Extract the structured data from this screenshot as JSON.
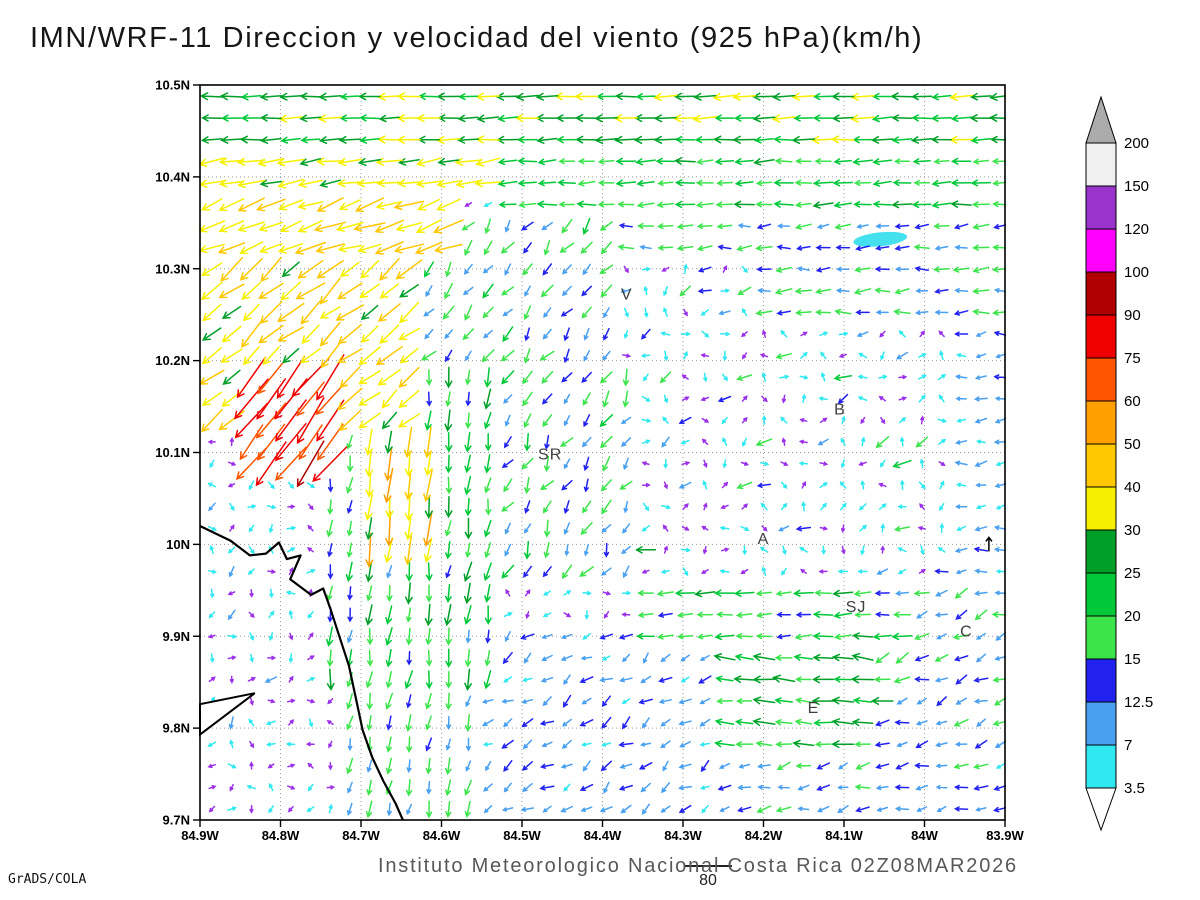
{
  "footer": {
    "credit": "GrADS/COLA",
    "caption": "Instituto Meteorologico Nacional Costa Rica 02Z08MAR2026",
    "reference_vector_label": "80"
  },
  "chart_data": {
    "type": "vector_field",
    "title": "IMN/WRF-11 Direccion y velocidad del viento (925 hPa)(km/h)",
    "units": "km/h",
    "level": "925 hPa",
    "valid_time": "02Z08MAR2026",
    "grid_on": true,
    "calm_color": "#9B30E8",
    "x_axis": {
      "range": [
        84.9,
        83.9
      ],
      "ticks": [
        {
          "v": 84.9,
          "label": "84.9W"
        },
        {
          "v": 84.8,
          "label": "84.8W"
        },
        {
          "v": 84.7,
          "label": "84.7W"
        },
        {
          "v": 84.6,
          "label": "84.6W"
        },
        {
          "v": 84.5,
          "label": "84.5W"
        },
        {
          "v": 84.4,
          "label": "84.4W"
        },
        {
          "v": 84.3,
          "label": "84.3W"
        },
        {
          "v": 84.2,
          "label": "84.2W"
        },
        {
          "v": 84.1,
          "label": "84.1W"
        },
        {
          "v": 84.0,
          "label": "84W"
        },
        {
          "v": 83.9,
          "label": "83.9W"
        }
      ]
    },
    "y_axis": {
      "range": [
        9.7,
        10.5
      ],
      "ticks": [
        {
          "v": 10.5,
          "label": "10.5N"
        },
        {
          "v": 10.4,
          "label": "10.4N"
        },
        {
          "v": 10.3,
          "label": "10.3N"
        },
        {
          "v": 10.2,
          "label": "10.2N"
        },
        {
          "v": 10.1,
          "label": "10.1N"
        },
        {
          "v": 10.0,
          "label": "10N"
        },
        {
          "v": 9.9,
          "label": "9.9N"
        },
        {
          "v": 9.8,
          "label": "9.8N"
        },
        {
          "v": 9.7,
          "label": "9.7N"
        }
      ]
    },
    "colorbar": {
      "units": "km/h",
      "levels": [
        3.5,
        7,
        12.5,
        15,
        20,
        25,
        30,
        40,
        50,
        60,
        75,
        90,
        100,
        120,
        150,
        200
      ],
      "band_colors": [
        "#2FE8F0",
        "#4AA0F0",
        "#2222F0",
        "#3CE44C",
        "#00C838",
        "#00A028",
        "#F6F000",
        "#FFC800",
        "#FFA000",
        "#FF5500",
        "#F00000",
        "#B00000",
        "#FF00FF",
        "#9933CC",
        "#F0F0F0"
      ],
      "above_color": "#ABABAB",
      "below_color": "#FFFFFF"
    },
    "stations": [
      {
        "label": "V",
        "lonW": 84.37,
        "lat": 10.272
      },
      {
        "label": "B",
        "lonW": 84.105,
        "lat": 10.147
      },
      {
        "label": "SR",
        "lonW": 84.465,
        "lat": 10.098
      },
      {
        "label": "A",
        "lonW": 84.2,
        "lat": 10.006
      },
      {
        "label": "SJ",
        "lonW": 84.085,
        "lat": 9.932
      },
      {
        "label": "C",
        "lonW": 83.948,
        "lat": 9.905
      },
      {
        "label": "E",
        "lonW": 84.138,
        "lat": 9.822
      }
    ],
    "coastline": [
      [
        84.9,
        10.02
      ],
      [
        84.862,
        10.004
      ],
      [
        84.838,
        9.988
      ],
      [
        84.818,
        9.99
      ],
      [
        84.802,
        10.002
      ],
      [
        84.792,
        9.984
      ],
      [
        84.775,
        9.988
      ],
      [
        84.788,
        9.962
      ],
      [
        84.762,
        9.945
      ],
      [
        84.747,
        9.952
      ],
      [
        84.738,
        9.93
      ],
      [
        84.727,
        9.9
      ],
      [
        84.715,
        9.868
      ],
      [
        84.707,
        9.835
      ],
      [
        84.698,
        9.798
      ],
      [
        84.686,
        9.768
      ],
      [
        84.672,
        9.742
      ],
      [
        84.657,
        9.718
      ],
      [
        84.648,
        9.7
      ]
    ],
    "spit": [
      [
        84.9,
        9.793
      ],
      [
        84.832,
        9.838
      ],
      [
        84.9,
        9.826
      ]
    ],
    "cyan_patch": {
      "lonW": 84.055,
      "lat": 10.332
    },
    "marks": [
      {
        "lonW": 83.92,
        "lat": 10.0
      }
    ],
    "wind_grid": {
      "lat_start": 9.712,
      "lat_step": 0.0235,
      "rows": 34,
      "lon_start": 83.905,
      "lon_step": 0.0245,
      "cols": 41
    },
    "flow_regions": [
      {
        "name": "red-jet-core",
        "lonW": [
          84.84,
          84.72
        ],
        "lat": [
          10.085,
          10.185
        ],
        "u": -46,
        "v": -62,
        "jd": 8,
        "js": 0.18
      },
      {
        "name": "orange-downflow",
        "lonW": [
          84.69,
          84.615
        ],
        "lat": [
          9.99,
          10.125
        ],
        "u": -5,
        "v": -41,
        "jd": 6,
        "js": 0.3
      },
      {
        "name": "west-nne-jet",
        "lonW": [
          84.9,
          84.62
        ],
        "lat": [
          10.135,
          10.31
        ],
        "u": -29,
        "v": -25,
        "jd": 12,
        "js": 0.28
      },
      {
        "name": "west-upper-jet",
        "lonW": [
          84.9,
          84.58
        ],
        "lat": [
          10.31,
          10.385
        ],
        "u": -37,
        "v": -13,
        "jd": 10,
        "js": 0.22
      },
      {
        "name": "band2-west",
        "lonW": [
          84.9,
          84.52
        ],
        "lat": [
          10.385,
          10.425
        ],
        "u": -33,
        "v": -5,
        "jd": 7,
        "js": 0.2
      },
      {
        "name": "top-band",
        "lonW": [
          84.9,
          83.9
        ],
        "lat": [
          10.425,
          10.5
        ],
        "u": -27,
        "v": -1,
        "jd": 5,
        "js": 0.18
      },
      {
        "name": "band2-east",
        "lonW": [
          84.52,
          83.9
        ],
        "lat": [
          10.355,
          10.425
        ],
        "u": -21,
        "v": -1,
        "jd": 7,
        "js": 0.25
      },
      {
        "name": "upper-mid-swirl",
        "lonW": [
          84.62,
          84.38
        ],
        "lat": [
          10.19,
          10.355
        ],
        "u": -9,
        "v": -12,
        "jd": 22,
        "js": 0.4
      },
      {
        "name": "v-weak-zone",
        "lonW": [
          84.44,
          84.22
        ],
        "lat": [
          10.19,
          10.32
        ],
        "u": 0,
        "v": 0,
        "random_dir": true,
        "base": 4.5,
        "jd": 180,
        "js": 0.5,
        "boost": {
          "p": 0.15,
          "f": 3.0,
          "dir": 210
        }
      },
      {
        "name": "east-upper-band",
        "lonW": [
          84.38,
          83.9
        ],
        "lat": [
          10.24,
          10.355
        ],
        "u": -15,
        "v": -1,
        "jd": 14,
        "js": 0.35
      },
      {
        "name": "central-downflow",
        "lonW": [
          84.74,
          84.54
        ],
        "lat": [
          9.84,
          10.22
        ],
        "u": -3,
        "v": -20,
        "jd": 12,
        "js": 0.4
      },
      {
        "name": "sr-green-patch",
        "lonW": [
          84.54,
          84.36
        ],
        "lat": [
          9.96,
          10.19
        ],
        "u": -7,
        "v": -13,
        "jd": 28,
        "js": 0.45
      },
      {
        "name": "mid-east-weak",
        "lonW": [
          84.36,
          83.97
        ],
        "lat": [
          9.96,
          10.24
        ],
        "u": 0,
        "v": 0,
        "random_dir": true,
        "base": 4.0,
        "jd": 180,
        "js": 0.5,
        "boost": {
          "p": 0.17,
          "f": 4.2,
          "dir": 205
        }
      },
      {
        "name": "east-edge-col",
        "lonW": [
          83.97,
          83.9
        ],
        "lat": [
          9.95,
          10.24
        ],
        "u": -9,
        "v": -1,
        "jd": 20,
        "js": 0.5
      },
      {
        "name": "sj-green-streak",
        "lonW": [
          84.36,
          84.02
        ],
        "lat": [
          9.88,
          9.96
        ],
        "u": -19,
        "v": -1,
        "jd": 8,
        "js": 0.35
      },
      {
        "name": "e-yellow-streak",
        "lonW": [
          84.26,
          84.06
        ],
        "lat": [
          9.775,
          9.88
        ],
        "u": -23,
        "v": 2,
        "jd": 8,
        "js": 0.3
      },
      {
        "name": "coast-south-col",
        "lonW": [
          84.72,
          84.56
        ],
        "lat": [
          9.7,
          9.84
        ],
        "u": -3,
        "v": -14,
        "jd": 12,
        "js": 0.4
      },
      {
        "name": "sw-weak",
        "lonW": [
          84.9,
          84.7
        ],
        "lat": [
          9.7,
          10.135
        ],
        "u": 0,
        "v": 0,
        "random_dir": true,
        "base": 3.4,
        "jd": 180,
        "js": 0.5,
        "boost": {
          "p": 0.08,
          "f": 2.5,
          "dir": 230
        }
      },
      {
        "name": "south-mid",
        "lonW": [
          84.56,
          84.24
        ],
        "lat": [
          9.7,
          9.9
        ],
        "u": -8,
        "v": -6,
        "jd": 30,
        "js": 0.5
      },
      {
        "name": "south-east",
        "lonW": [
          84.24,
          83.9
        ],
        "lat": [
          9.7,
          9.775
        ],
        "u": -11,
        "v": -3,
        "jd": 22,
        "js": 0.45
      },
      {
        "name": "se-corner",
        "lonW": [
          84.06,
          83.9
        ],
        "lat": [
          9.775,
          9.95
        ],
        "u": -13,
        "v": -5,
        "jd": 25,
        "js": 0.4,
        "boost": {
          "p": 0.1,
          "f": 1.5,
          "dir": 200
        }
      },
      {
        "name": "fallback-calm",
        "lonW": [
          84.9,
          83.9
        ],
        "lat": [
          9.7,
          10.5
        ],
        "u": 0,
        "v": 0,
        "random_dir": true,
        "base": 3.5,
        "jd": 180,
        "js": 0.5
      }
    ]
  }
}
